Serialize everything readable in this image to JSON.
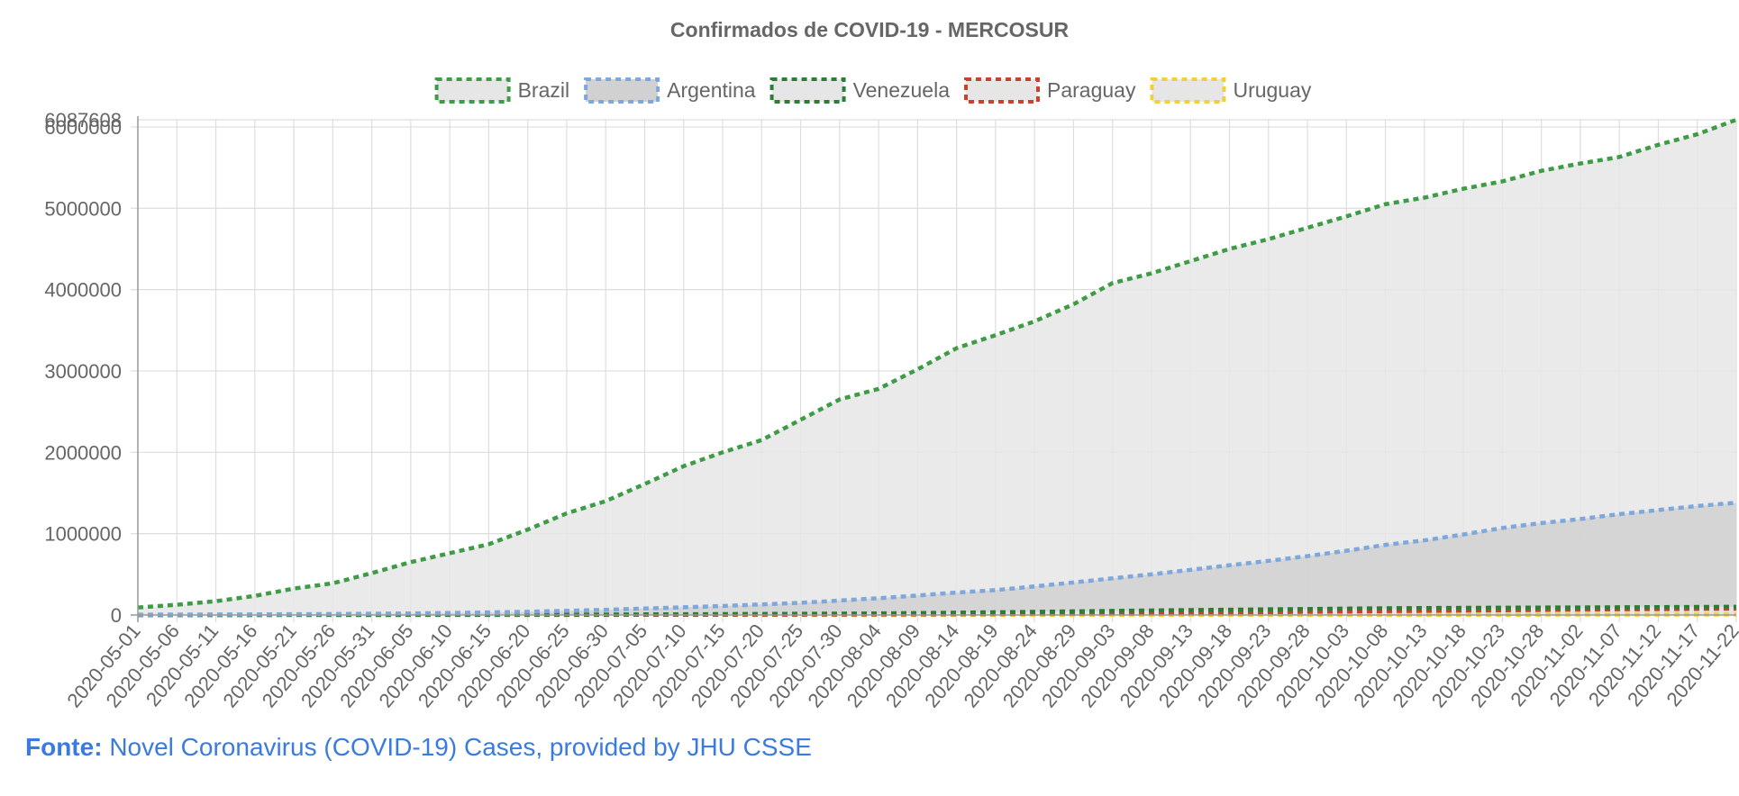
{
  "source": {
    "label": "Fonte:",
    "text": "Novel Coronavirus (COVID-19) Cases, provided by JHU CSSE"
  },
  "chart_data": {
    "type": "area",
    "title": "Confirmados de COVID-19 - MERCOSUR",
    "xlabel": "",
    "ylabel": "",
    "ylim": [
      0,
      6087608
    ],
    "y_ticks": [
      0,
      1000000,
      2000000,
      3000000,
      4000000,
      5000000,
      6000000
    ],
    "y_max_label": "6087608",
    "grid": true,
    "legend_position": "top",
    "x_tick_labels": [
      "2020-05-01",
      "2020-05-06",
      "2020-05-11",
      "2020-05-16",
      "2020-05-21",
      "2020-05-26",
      "2020-05-31",
      "2020-06-05",
      "2020-06-10",
      "2020-06-15",
      "2020-06-20",
      "2020-06-25",
      "2020-06-30",
      "2020-07-05",
      "2020-07-10",
      "2020-07-15",
      "2020-07-20",
      "2020-07-25",
      "2020-07-30",
      "2020-08-04",
      "2020-08-09",
      "2020-08-14",
      "2020-08-19",
      "2020-08-24",
      "2020-08-29",
      "2020-09-03",
      "2020-09-08",
      "2020-09-13",
      "2020-09-18",
      "2020-09-23",
      "2020-09-28",
      "2020-10-03",
      "2020-10-08",
      "2020-10-13",
      "2020-10-18",
      "2020-10-23",
      "2020-10-28",
      "2020-11-02",
      "2020-11-07",
      "2020-11-12",
      "2020-11-17",
      "2020-11-22"
    ],
    "x": [
      "2020-05-01",
      "2020-05-06",
      "2020-05-11",
      "2020-05-16",
      "2020-05-21",
      "2020-05-26",
      "2020-05-31",
      "2020-06-05",
      "2020-06-10",
      "2020-06-15",
      "2020-06-20",
      "2020-06-25",
      "2020-06-30",
      "2020-07-05",
      "2020-07-10",
      "2020-07-15",
      "2020-07-20",
      "2020-07-25",
      "2020-07-30",
      "2020-08-04",
      "2020-08-09",
      "2020-08-14",
      "2020-08-19",
      "2020-08-24",
      "2020-08-29",
      "2020-09-03",
      "2020-09-08",
      "2020-09-13",
      "2020-09-18",
      "2020-09-23",
      "2020-09-28",
      "2020-10-03",
      "2020-10-08",
      "2020-10-13",
      "2020-10-18",
      "2020-10-23",
      "2020-10-28",
      "2020-11-02",
      "2020-11-07",
      "2020-11-12",
      "2020-11-17",
      "2020-11-22"
    ],
    "series": [
      {
        "name": "Brazil",
        "color": "#3e9b46",
        "fill": "#e6e6e6",
        "values": [
          92000,
          126000,
          170000,
          235000,
          325000,
          390000,
          515000,
          650000,
          760000,
          870000,
          1050000,
          1250000,
          1400000,
          1610000,
          1830000,
          2000000,
          2150000,
          2400000,
          2650000,
          2780000,
          3020000,
          3280000,
          3440000,
          3610000,
          3820000,
          4080000,
          4200000,
          4350000,
          4500000,
          4620000,
          4760000,
          4900000,
          5050000,
          5130000,
          5240000,
          5330000,
          5460000,
          5550000,
          5630000,
          5780000,
          5910000,
          6087608
        ]
      },
      {
        "name": "Argentina",
        "color": "#7ea8dc",
        "fill": "#d1d1d1",
        "values": [
          4400,
          5400,
          6600,
          7800,
          9300,
          12000,
          16000,
          20000,
          25000,
          32000,
          40000,
          52000,
          64000,
          80000,
          95000,
          111000,
          130000,
          150000,
          178000,
          206000,
          240000,
          276000,
          306000,
          351000,
          400000,
          451000,
          500000,
          555000,
          612000,
          665000,
          724000,
          790000,
          862000,
          918000,
          990000,
          1070000,
          1130000,
          1180000,
          1240000,
          1290000,
          1340000,
          1380000
        ]
      },
      {
        "name": "Venezuela",
        "color": "#2d7d37",
        "fill": "#e6e6e6",
        "values": [
          340,
          380,
          420,
          540,
          880,
          1200,
          1700,
          2200,
          2700,
          3200,
          3900,
          4500,
          6000,
          7700,
          9000,
          11000,
          13000,
          15000,
          17000,
          20000,
          24000,
          29000,
          34000,
          39000,
          45000,
          51000,
          56000,
          61000,
          65000,
          70000,
          74000,
          79000,
          83000,
          86000,
          88000,
          90000,
          92000,
          93000,
          95000,
          97000,
          99000,
          101000
        ]
      },
      {
        "name": "Paraguay",
        "color": "#c8432d",
        "fill": "#e6e6e6",
        "values": [
          300,
          400,
          500,
          700,
          800,
          900,
          1000,
          1100,
          1200,
          1300,
          1400,
          1600,
          1900,
          2400,
          2900,
          3500,
          4000,
          4800,
          5700,
          7000,
          8000,
          10000,
          12000,
          15000,
          17000,
          20000,
          24000,
          28000,
          32000,
          36000,
          40000,
          44000,
          48000,
          52000,
          55000,
          58000,
          62000,
          66000,
          70000,
          72000,
          75000,
          78000
        ]
      },
      {
        "name": "Uruguay",
        "color": "#f2cf3c",
        "fill": "#e6e6e6",
        "values": [
          640,
          700,
          730,
          740,
          760,
          800,
          840,
          850,
          860,
          870,
          890,
          900,
          930,
          950,
          990,
          1000,
          1100,
          1200,
          1250,
          1300,
          1400,
          1500,
          1600,
          1700,
          1800,
          1900,
          2000,
          2100,
          2200,
          2300,
          2400,
          2600,
          2900,
          3000,
          3100,
          3300,
          3500,
          3700,
          4000,
          4500,
          5200,
          5800
        ]
      }
    ]
  }
}
